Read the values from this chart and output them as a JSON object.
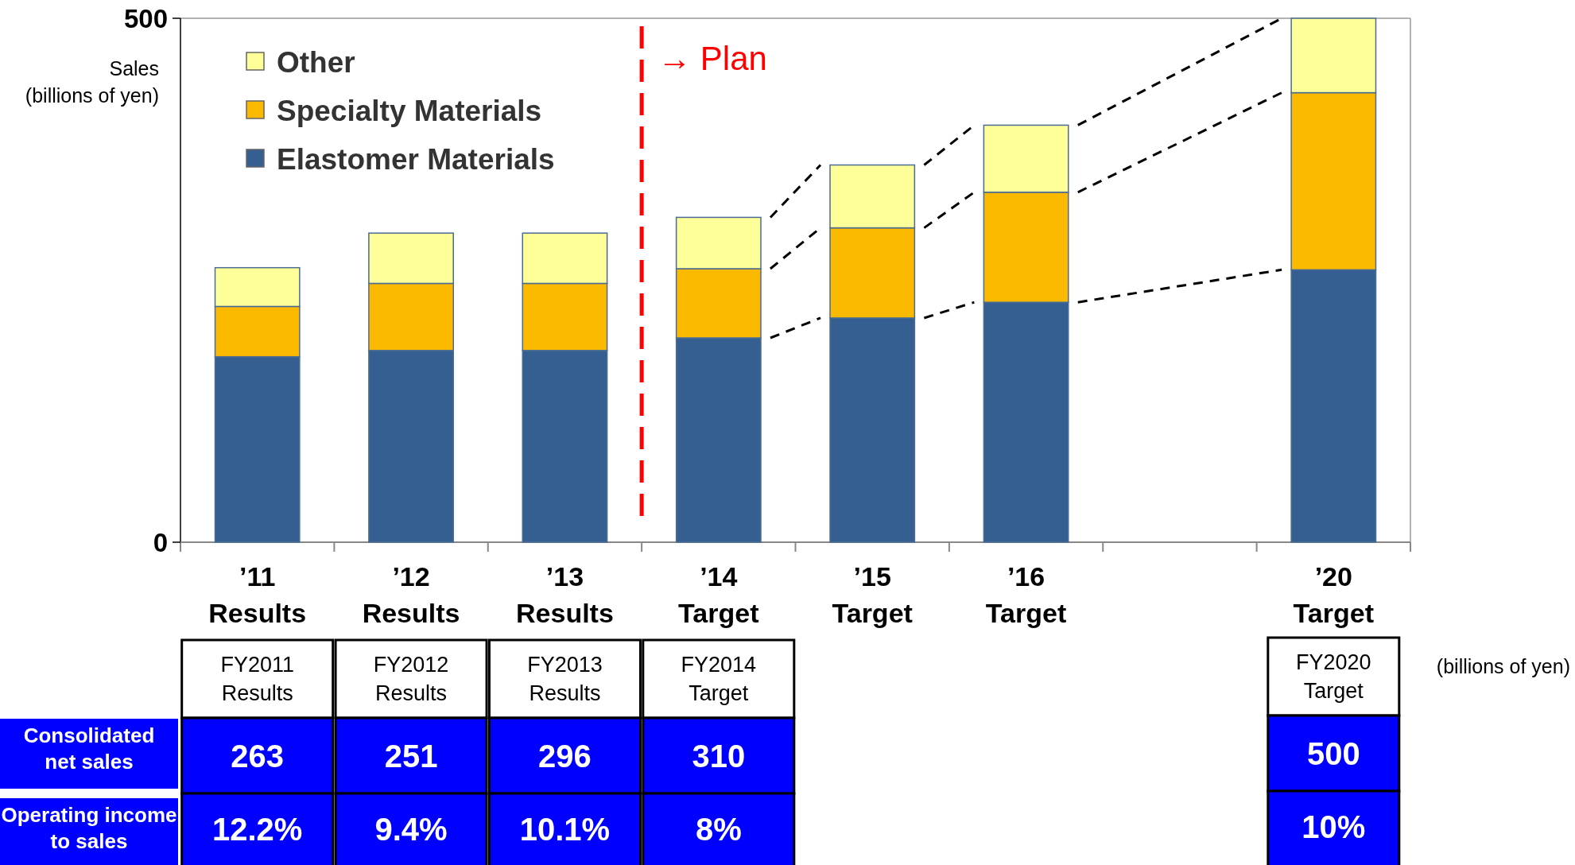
{
  "chart_data": {
    "type": "bar",
    "stacked": true,
    "ylabel": "Sales\n(billions of yen)",
    "categories": [
      "’11\nResults",
      "’12\nResults",
      "’13\nResults",
      "’14\nTarget",
      "’15\nTarget",
      "’16\nTarget",
      null,
      "’20\nTarget"
    ],
    "series": [
      {
        "name": "Elastomer Materials",
        "color": "#365f91",
        "values": [
          177,
          183,
          183,
          195,
          214,
          229,
          null,
          260
        ]
      },
      {
        "name": "Specialty Materials",
        "color": "#fbb900",
        "values": [
          48,
          64,
          64,
          66,
          86,
          105,
          null,
          169
        ]
      },
      {
        "name": "Other",
        "color": "#ffff99",
        "values": [
          37,
          48,
          48,
          49,
          60,
          64,
          null,
          71
        ]
      }
    ],
    "ylim": [
      0,
      500
    ],
    "yticks": [
      0,
      500
    ],
    "legend": "top left",
    "annotations": [
      "FY2011\nResults",
      "FY2012\nResults",
      "FY2013\nResults",
      "FY2014\nTarget",
      "FY2020\nTarget",
      "(billions of yen)",
      "Consolidated\nnet sales",
      "Operating income\nto sales",
      "263",
      "251",
      "296",
      "310",
      "500",
      "12.2%",
      "9.4%",
      "10.1%",
      "8%",
      "10%",
      "→ Plan"
    ]
  }
}
